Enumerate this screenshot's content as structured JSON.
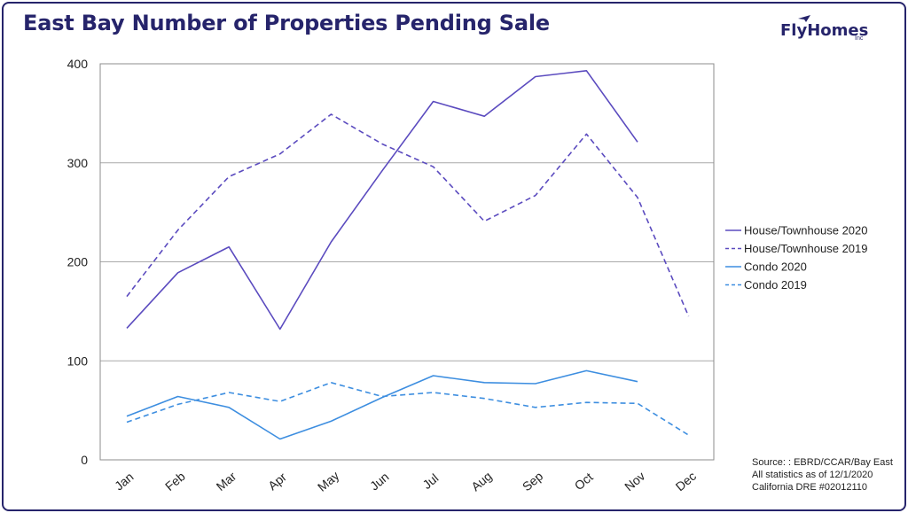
{
  "header": {
    "title": "East Bay Number of Properties Pending Sale",
    "logo_text": "FlyHomes",
    "logo_sub": "Inc"
  },
  "footer": {
    "source_lines": [
      "Source: : EBRD/CCAR/Bay East",
      "All statistics as of 12/1/2020",
      "California DRE #02012110"
    ]
  },
  "chart_data": {
    "type": "line",
    "title": "East Bay Number of Properties Pending Sale",
    "categories": [
      "Jan",
      "Feb",
      "Mar",
      "Apr",
      "May",
      "Jun",
      "Jul",
      "Aug",
      "Sep",
      "Oct",
      "Nov",
      "Dec"
    ],
    "ylim": [
      0,
      400
    ],
    "yticks": [
      0,
      100,
      200,
      300,
      400
    ],
    "grid": "horizontal",
    "legend_position": "right",
    "series": [
      {
        "name": "House/Townhouse 2020",
        "color": "#5b4bbf",
        "dash": "solid",
        "values": [
          133,
          189,
          215,
          132,
          220,
          292,
          362,
          347,
          387,
          393,
          321,
          null
        ]
      },
      {
        "name": "House/Townhouse 2019",
        "color": "#5b4bbf",
        "dash": "dashed",
        "values": [
          165,
          232,
          286,
          309,
          349,
          319,
          296,
          241,
          267,
          329,
          265,
          145
        ]
      },
      {
        "name": "Condo 2020",
        "color": "#3d8ee0",
        "dash": "solid",
        "values": [
          44,
          64,
          53,
          21,
          39,
          63,
          85,
          78,
          77,
          90,
          79,
          null
        ]
      },
      {
        "name": "Condo 2019",
        "color": "#3d8ee0",
        "dash": "dashed",
        "values": [
          38,
          56,
          68,
          59,
          78,
          64,
          68,
          62,
          53,
          58,
          57,
          25
        ]
      }
    ]
  }
}
